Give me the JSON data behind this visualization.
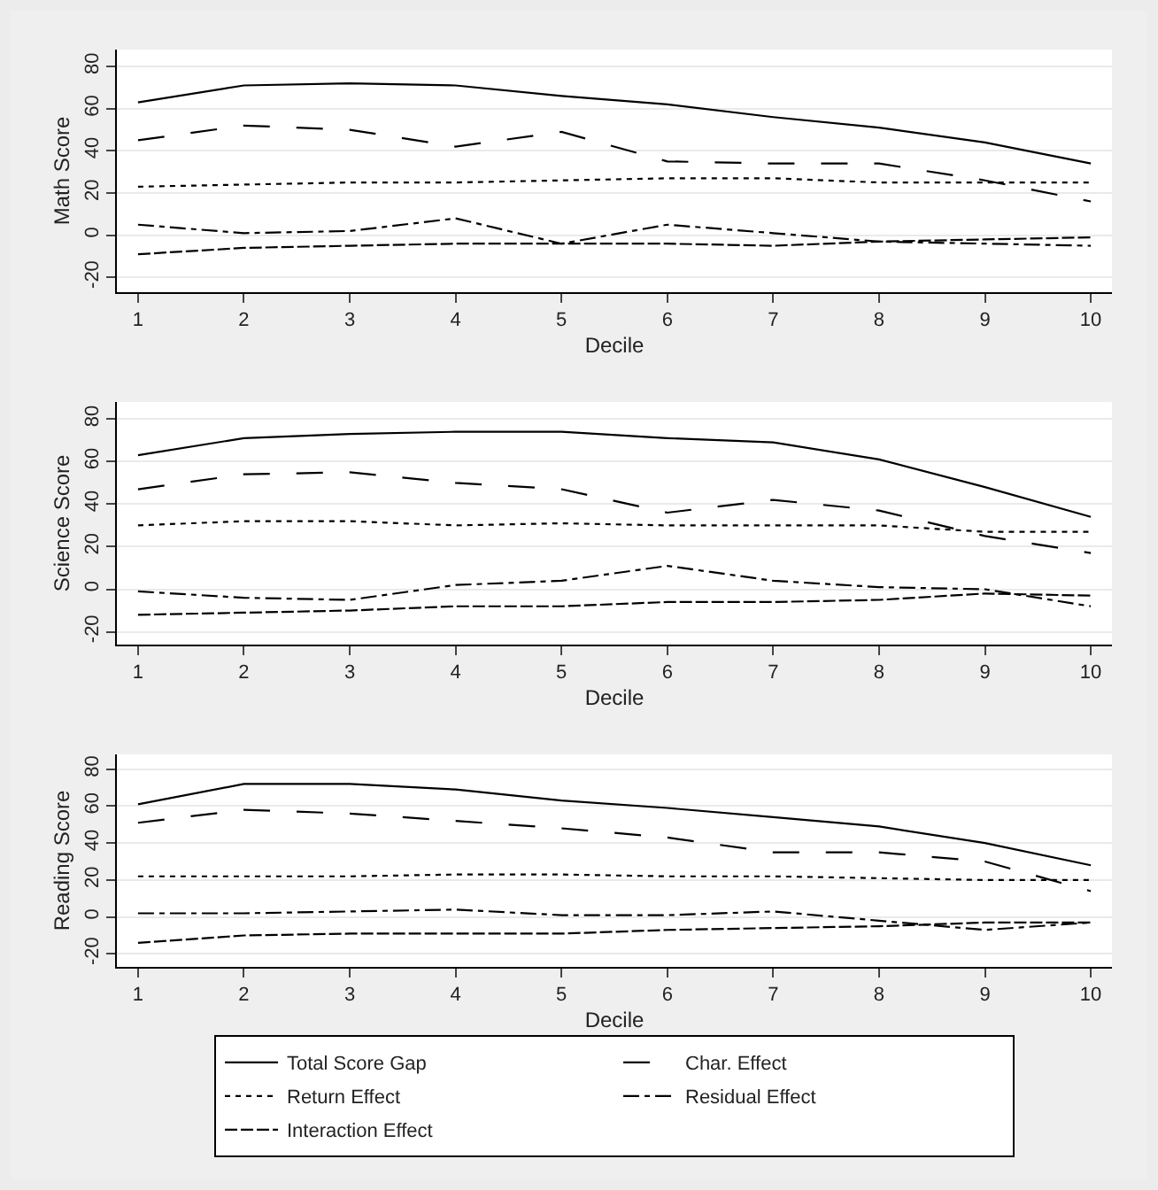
{
  "chart_data": [
    {
      "type": "line",
      "xlabel": "Decile",
      "ylabel": "Math Score",
      "x": [
        1,
        2,
        3,
        4,
        5,
        6,
        7,
        8,
        9,
        10
      ],
      "xlim": [
        0.8,
        10.2
      ],
      "xticks": [
        1,
        2,
        3,
        4,
        5,
        6,
        7,
        8,
        9,
        10
      ],
      "ylim": [
        -27,
        88
      ],
      "yticks": [
        -20,
        0,
        20,
        40,
        60,
        80
      ],
      "grid": "y",
      "legend": false,
      "marker": "none",
      "series": [
        {
          "color": "#000000",
          "line_style": "solid",
          "values": [
            63,
            71,
            72,
            71,
            66,
            62,
            56,
            51,
            44,
            34
          ]
        },
        {
          "color": "#000000",
          "line_style": "longdash",
          "values": [
            45,
            52,
            50,
            42,
            49,
            35,
            34,
            34,
            26,
            16
          ]
        },
        {
          "color": "#000000",
          "line_style": "dotted",
          "values": [
            23,
            24,
            25,
            25,
            26,
            27,
            27,
            25,
            25,
            25
          ]
        },
        {
          "color": "#000000",
          "line_style": "dashdot",
          "values": [
            5,
            1,
            2,
            8,
            -4,
            5,
            1,
            -3,
            -4,
            -5
          ]
        },
        {
          "color": "#000000",
          "line_style": "dashed",
          "values": [
            -9,
            -6,
            -5,
            -4,
            -4,
            -4,
            -5,
            -3,
            -2,
            -1
          ]
        }
      ]
    },
    {
      "type": "line",
      "xlabel": "Decile",
      "ylabel": "Science Score",
      "x": [
        1,
        2,
        3,
        4,
        5,
        6,
        7,
        8,
        9,
        10
      ],
      "xlim": [
        0.8,
        10.2
      ],
      "xticks": [
        1,
        2,
        3,
        4,
        5,
        6,
        7,
        8,
        9,
        10
      ],
      "ylim": [
        -26,
        88
      ],
      "yticks": [
        -20,
        0,
        20,
        40,
        60,
        80
      ],
      "grid": "y",
      "legend": false,
      "marker": "none",
      "series": [
        {
          "color": "#000000",
          "line_style": "solid",
          "values": [
            63,
            71,
            73,
            74,
            74,
            71,
            69,
            61,
            48,
            34
          ]
        },
        {
          "color": "#000000",
          "line_style": "longdash",
          "values": [
            47,
            54,
            55,
            50,
            47,
            36,
            42,
            37,
            25,
            17
          ]
        },
        {
          "color": "#000000",
          "line_style": "dotted",
          "values": [
            30,
            32,
            32,
            30,
            31,
            30,
            30,
            30,
            27,
            27
          ]
        },
        {
          "color": "#000000",
          "line_style": "dashdot",
          "values": [
            -1,
            -4,
            -5,
            2,
            4,
            11,
            4,
            1,
            0,
            -8
          ]
        },
        {
          "color": "#000000",
          "line_style": "dashed",
          "values": [
            -12,
            -11,
            -10,
            -8,
            -8,
            -6,
            -6,
            -5,
            -2,
            -3
          ]
        }
      ]
    },
    {
      "type": "line",
      "xlabel": "Decile",
      "ylabel": "Reading Score",
      "x": [
        1,
        2,
        3,
        4,
        5,
        6,
        7,
        8,
        9,
        10
      ],
      "xlim": [
        0.8,
        10.2
      ],
      "xticks": [
        1,
        2,
        3,
        4,
        5,
        6,
        7,
        8,
        9,
        10
      ],
      "ylim": [
        -27,
        88
      ],
      "yticks": [
        -20,
        0,
        20,
        40,
        60,
        80
      ],
      "grid": "y",
      "legend": "bottom",
      "marker": "none",
      "series": [
        {
          "name": "Total Score Gap",
          "color": "#000000",
          "line_style": "solid",
          "values": [
            61,
            72,
            72,
            69,
            63,
            59,
            54,
            49,
            40,
            28
          ]
        },
        {
          "name": "Char. Effect",
          "color": "#000000",
          "line_style": "longdash",
          "values": [
            51,
            58,
            56,
            52,
            48,
            43,
            35,
            35,
            30,
            14
          ]
        },
        {
          "name": "Return Effect",
          "color": "#000000",
          "line_style": "dotted",
          "values": [
            22,
            22,
            22,
            23,
            23,
            22,
            22,
            21,
            20,
            20
          ]
        },
        {
          "name": "Residual Effect",
          "color": "#000000",
          "line_style": "dashdot",
          "values": [
            2,
            2,
            3,
            4,
            1,
            1,
            3,
            -2,
            -7,
            -3
          ]
        },
        {
          "name": "Interaction Effect",
          "color": "#000000",
          "line_style": "dashed",
          "values": [
            -14,
            -10,
            -9,
            -9,
            -9,
            -7,
            -6,
            -5,
            -3,
            -3
          ]
        }
      ]
    }
  ]
}
